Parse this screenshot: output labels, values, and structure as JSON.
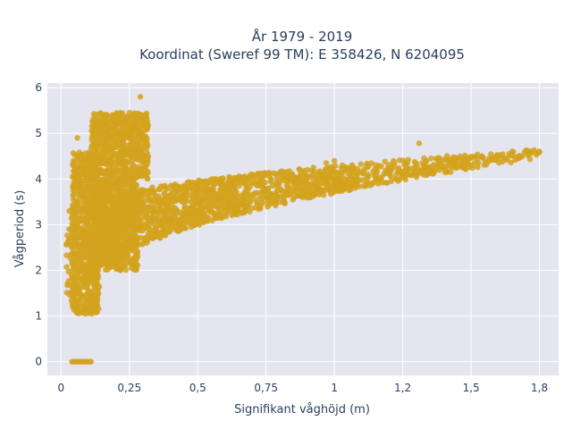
{
  "chart_data": {
    "type": "scatter",
    "title_line1": "År 1979 - 2019",
    "title_line2": "Koordinat (Sweref 99 TM): E 358426, N 6204095",
    "xlabel": "Signifikant våghöjd (m)",
    "ylabel": "Vågperiod (s)",
    "xlim": [
      -0.05,
      1.82
    ],
    "ylim": [
      -0.3,
      6.1
    ],
    "x_ticks": [
      0,
      0.25,
      0.5,
      0.75,
      1,
      1.25,
      1.5,
      1.75
    ],
    "x_tick_labels": [
      "0",
      "0,25",
      "0,5",
      "0,75",
      "1",
      "1,2",
      "1,5",
      "1,8"
    ],
    "y_ticks": [
      0,
      1,
      2,
      3,
      4,
      5,
      6
    ],
    "y_tick_labels": [
      "0",
      "1",
      "2",
      "3",
      "4",
      "5",
      "6"
    ],
    "grid": true,
    "marker_color": "#d4a31f",
    "plot_bg": "#e5e5ef",
    "regions": [
      {
        "x": [
          0.04,
          0.14
        ],
        "y": [
          1.05,
          4.6
        ],
        "density": 0.9
      },
      {
        "x": [
          0.11,
          0.32
        ],
        "y": [
          4.0,
          5.45
        ],
        "density": 0.9
      },
      {
        "x": [
          0.12,
          0.28
        ],
        "y": [
          2.0,
          4.0
        ],
        "density": 0.9
      },
      {
        "x": [
          0.02,
          0.05
        ],
        "y": [
          1.2,
          3.3
        ],
        "density": 0.3
      }
    ],
    "band": {
      "x_start": 0.1,
      "x_end": 1.75,
      "y_low_start": 1.55,
      "y_high_start": 3.3,
      "y_low_end": 4.45,
      "y_high_end": 4.65
    },
    "outliers": [
      {
        "x": 0.29,
        "y": 5.8
      },
      {
        "x": 0.06,
        "y": 4.9
      },
      {
        "x": 0.03,
        "y": 3.3
      },
      {
        "x": 0.09,
        "y": 1.05
      },
      {
        "x": 1.31,
        "y": 4.78
      },
      {
        "x": 1.6,
        "y": 4.5
      },
      {
        "x": 1.72,
        "y": 4.6
      },
      {
        "x": 1.75,
        "y": 4.6
      },
      {
        "x": 1.22,
        "y": 4.35
      },
      {
        "x": 1.47,
        "y": 4.4
      },
      {
        "x": 1.0,
        "y": 4.4
      },
      {
        "x": 0.97,
        "y": 4.35
      }
    ],
    "zero_line": {
      "x": [
        0.04,
        0.11
      ],
      "y": 0
    }
  }
}
